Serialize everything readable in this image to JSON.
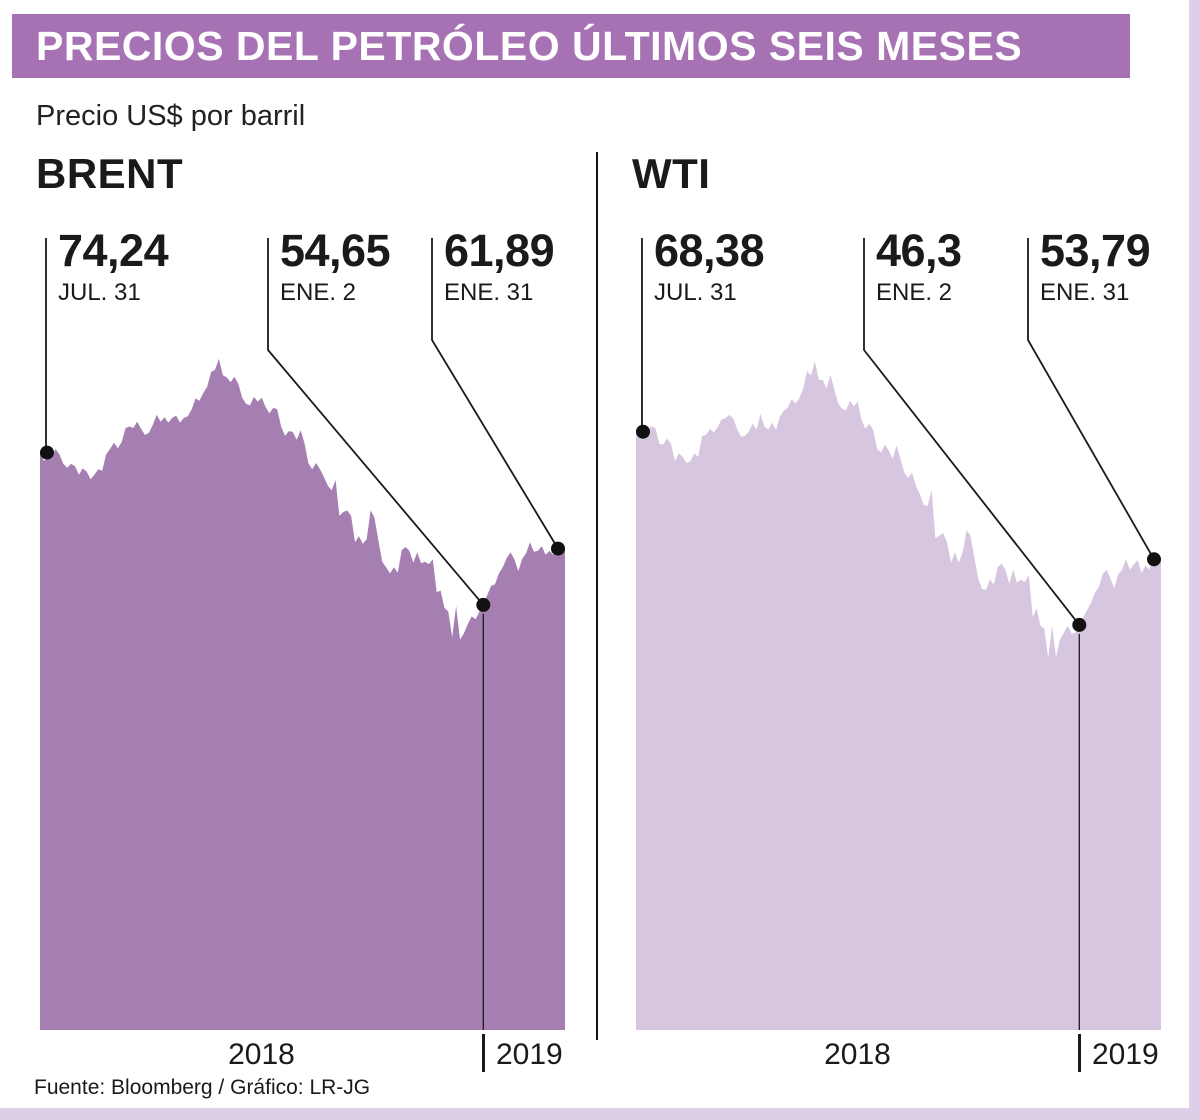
{
  "header": {
    "title": "PRECIOS DEL PETRÓLEO ÚLTIMOS SEIS MESES"
  },
  "subtitle": "Precio US$ por barril",
  "footer": {
    "source": "Fuente: Bloomberg / Gráfico: LR-JG"
  },
  "theme": {
    "accent": "#a772b4",
    "frame_light": "#decfe9",
    "line_color": "#1a1a1a",
    "brent_fill": "#a67fb2",
    "wti_fill": "#d6c6df"
  },
  "chart_data": [
    {
      "type": "area",
      "title": "BRENT",
      "ylabel": "Precio US$ por barril",
      "ylim": [
        0,
        90
      ],
      "fill_color": "#a67fb2",
      "x_axis_labels": [
        "2018",
        "2019"
      ],
      "year_divider_index": 114,
      "markers": [
        {
          "value_label": "74,24",
          "date_label": "JUL. 31",
          "value": 74.24,
          "index": 0
        },
        {
          "value_label": "54,65",
          "date_label": "ENE. 2",
          "value": 54.65,
          "index": 114
        },
        {
          "value_label": "61,89",
          "date_label": "ENE. 31",
          "value": 61.89,
          "index": 135
        }
      ],
      "values": [
        74.24,
        73.2,
        73.5,
        73.8,
        74.7,
        74.0,
        72.8,
        72.3,
        72.8,
        72.5,
        71.4,
        72.2,
        71.8,
        70.8,
        71.4,
        72.1,
        71.9,
        74.0,
        74.7,
        75.5,
        74.8,
        75.6,
        77.4,
        77.6,
        77.4,
        78.2,
        77.3,
        76.5,
        76.8,
        77.8,
        79.1,
        78.2,
        78.8,
        78.1,
        78.7,
        79.0,
        78.1,
        78.7,
        78.9,
        79.8,
        81.2,
        80.9,
        81.9,
        82.7,
        84.6,
        84.9,
        86.3,
        84.2,
        83.9,
        83.3,
        84.0,
        83.1,
        81.3,
        80.5,
        80.3,
        81.4,
        80.8,
        81.3,
        80.1,
        79.3,
        80.0,
        79.8,
        77.6,
        76.4,
        77.0,
        76.9,
        75.9,
        77.1,
        75.5,
        72.9,
        72.1,
        72.9,
        72.1,
        71.1,
        70.0,
        69.4,
        70.7,
        66.1,
        66.6,
        66.8,
        66.1,
        62.7,
        63.5,
        62.5,
        63.1,
        66.8,
        65.9,
        63.0,
        60.2,
        59.5,
        58.7,
        59.5,
        58.8,
        61.7,
        62.1,
        61.6,
        60.1,
        61.4,
        60.0,
        60.2,
        59.9,
        60.5,
        56.3,
        56.5,
        54.3,
        53.8,
        50.5,
        54.5,
        50.2,
        51.0,
        52.2,
        53.2,
        52.8,
        53.8,
        54.65,
        55.9,
        57.1,
        57.3,
        58.7,
        59.5,
        60.7,
        61.4,
        60.5,
        59.0,
        60.6,
        61.3,
        62.7,
        61.5,
        61.6,
        62.2,
        61.1,
        61.6,
        61.1,
        61.9,
        61.3,
        61.89
      ]
    },
    {
      "type": "area",
      "title": "WTI",
      "ylabel": "Precio US$ por barril",
      "ylim": [
        0,
        80
      ],
      "fill_color": "#d6c6df",
      "x_axis_labels": [
        "2018",
        "2019"
      ],
      "year_divider_index": 114,
      "markers": [
        {
          "value_label": "68,38",
          "date_label": "JUL. 31",
          "value": 68.38,
          "index": 0
        },
        {
          "value_label": "46,3",
          "date_label": "ENE. 2",
          "value": 46.3,
          "index": 114
        },
        {
          "value_label": "53,79",
          "date_label": "ENE. 31",
          "value": 53.79,
          "index": 135
        }
      ],
      "values": [
        68.38,
        67.7,
        68.5,
        68.5,
        69.0,
        68.8,
        67.0,
        66.9,
        67.6,
        67.0,
        65.0,
        65.9,
        65.5,
        64.8,
        65.0,
        65.9,
        65.5,
        67.9,
        68.0,
        68.7,
        68.3,
        68.9,
        69.8,
        69.9,
        70.3,
        69.9,
        68.7,
        67.8,
        67.9,
        68.4,
        69.3,
        68.6,
        70.4,
        69.0,
        68.6,
        69.4,
        68.6,
        70.1,
        70.8,
        71.1,
        72.1,
        71.6,
        72.2,
        73.3,
        75.3,
        74.8,
        76.4,
        74.3,
        74.3,
        73.3,
        74.9,
        73.2,
        71.6,
        71.0,
        70.8,
        71.9,
        71.3,
        71.8,
        69.7,
        68.7,
        69.3,
        68.6,
        66.4,
        66.0,
        66.9,
        66.2,
        65.3,
        66.8,
        65.3,
        63.7,
        63.1,
        63.7,
        62.2,
        61.2,
        60.0,
        59.9,
        61.7,
        56.2,
        56.5,
        56.8,
        55.7,
        53.4,
        54.6,
        53.4,
        54.6,
        57.1,
        56.5,
        54.0,
        51.6,
        50.4,
        50.3,
        51.5,
        50.9,
        52.9,
        53.3,
        52.6,
        51.0,
        52.6,
        51.1,
        51.5,
        51.2,
        52.0,
        47.2,
        48.2,
        46.2,
        45.9,
        42.5,
        46.2,
        42.6,
        44.6,
        45.4,
        46.2,
        45.3,
        45.4,
        46.3,
        47.1,
        48.0,
        48.8,
        50.0,
        50.6,
        52.1,
        52.6,
        51.6,
        50.5,
        52.1,
        52.6,
        53.8,
        52.6,
        53.2,
        53.7,
        52.2,
        53.1,
        52.6,
        53.9,
        53.0,
        53.79
      ]
    }
  ]
}
